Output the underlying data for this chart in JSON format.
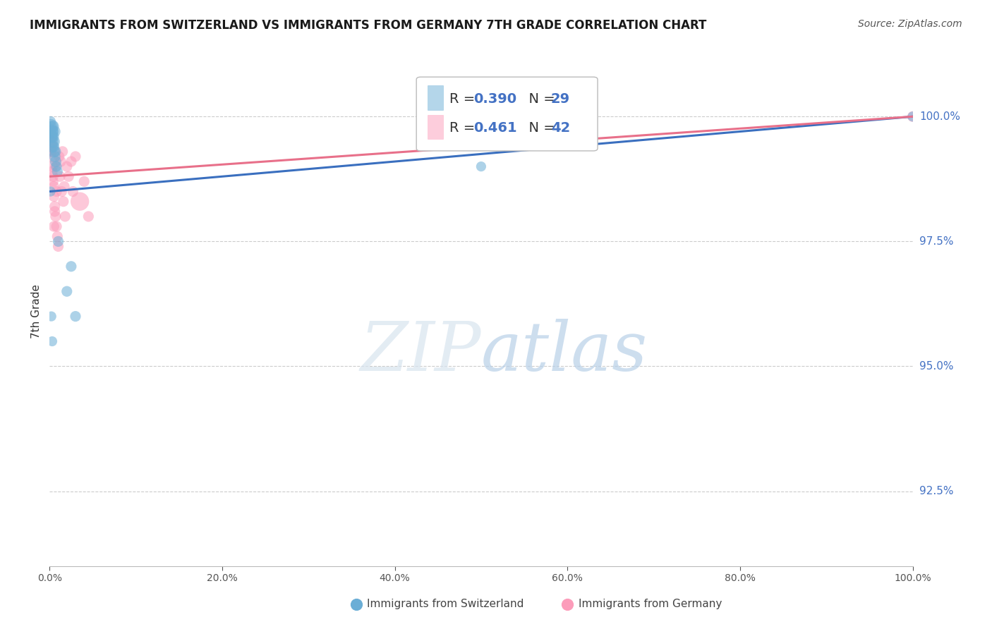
{
  "title": "IMMIGRANTS FROM SWITZERLAND VS IMMIGRANTS FROM GERMANY 7TH GRADE CORRELATION CHART",
  "source": "Source: ZipAtlas.com",
  "ylabel": "7th Grade",
  "ytick_labels": [
    "92.5%",
    "95.0%",
    "97.5%",
    "100.0%"
  ],
  "ytick_values": [
    92.5,
    95.0,
    97.5,
    100.0
  ],
  "legend_bottom": [
    "Immigrants from Switzerland",
    "Immigrants from Germany"
  ],
  "r_swiss": 0.39,
  "n_swiss": 29,
  "r_germany": 0.461,
  "n_germany": 42,
  "swiss_color": "#6baed6",
  "germany_color": "#fc9cba",
  "swiss_line_color": "#3a6fbf",
  "germany_line_color": "#e8708a",
  "swiss_x": [
    0.001,
    0.002,
    0.002,
    0.003,
    0.003,
    0.004,
    0.004,
    0.005,
    0.005,
    0.006,
    0.006,
    0.007,
    0.008,
    0.009,
    0.001,
    0.002,
    0.003,
    0.004,
    0.005,
    0.007,
    0.01,
    0.02,
    0.025,
    0.03,
    0.001,
    0.002,
    0.003,
    0.5,
    1.0
  ],
  "swiss_y": [
    99.8,
    99.7,
    99.6,
    99.5,
    99.4,
    99.8,
    99.6,
    99.5,
    99.3,
    99.2,
    99.7,
    99.1,
    99.0,
    98.9,
    99.9,
    99.8,
    99.6,
    99.7,
    99.4,
    99.3,
    97.5,
    96.5,
    97.0,
    96.0,
    98.5,
    96.0,
    95.5,
    99.0,
    100.0
  ],
  "swiss_size": [
    80,
    70,
    60,
    55,
    55,
    50,
    50,
    50,
    50,
    45,
    45,
    45,
    40,
    40,
    40,
    40,
    40,
    40,
    40,
    40,
    40,
    40,
    40,
    40,
    35,
    35,
    35,
    35,
    35
  ],
  "germany_x": [
    0.001,
    0.001,
    0.002,
    0.002,
    0.003,
    0.003,
    0.004,
    0.004,
    0.005,
    0.005,
    0.006,
    0.007,
    0.007,
    0.008,
    0.008,
    0.009,
    0.01,
    0.011,
    0.012,
    0.013,
    0.014,
    0.015,
    0.016,
    0.017,
    0.018,
    0.02,
    0.022,
    0.025,
    0.027,
    0.03,
    0.035,
    0.04,
    0.045,
    0.005,
    0.003,
    0.006,
    0.003,
    0.002,
    0.001,
    0.001,
    0.5,
    1.0
  ],
  "germany_y": [
    99.5,
    99.6,
    99.4,
    99.3,
    99.2,
    99.0,
    98.8,
    98.7,
    98.6,
    98.4,
    98.2,
    98.0,
    99.0,
    97.8,
    98.5,
    97.6,
    97.4,
    99.2,
    98.8,
    99.1,
    98.5,
    99.3,
    98.3,
    98.6,
    98.0,
    99.0,
    98.8,
    99.1,
    98.5,
    99.2,
    98.3,
    98.7,
    98.0,
    97.8,
    98.9,
    98.1,
    99.4,
    99.5,
    99.7,
    99.3,
    100.0,
    100.0
  ],
  "germany_size": [
    55,
    50,
    50,
    45,
    45,
    45,
    40,
    40,
    40,
    40,
    40,
    40,
    40,
    40,
    40,
    40,
    40,
    40,
    40,
    40,
    40,
    40,
    40,
    40,
    40,
    40,
    40,
    40,
    40,
    40,
    120,
    40,
    40,
    40,
    40,
    40,
    40,
    40,
    40,
    40,
    40,
    40
  ],
  "xmin": 0.0,
  "xmax": 1.0,
  "ymin": 91.0,
  "ymax": 101.2
}
